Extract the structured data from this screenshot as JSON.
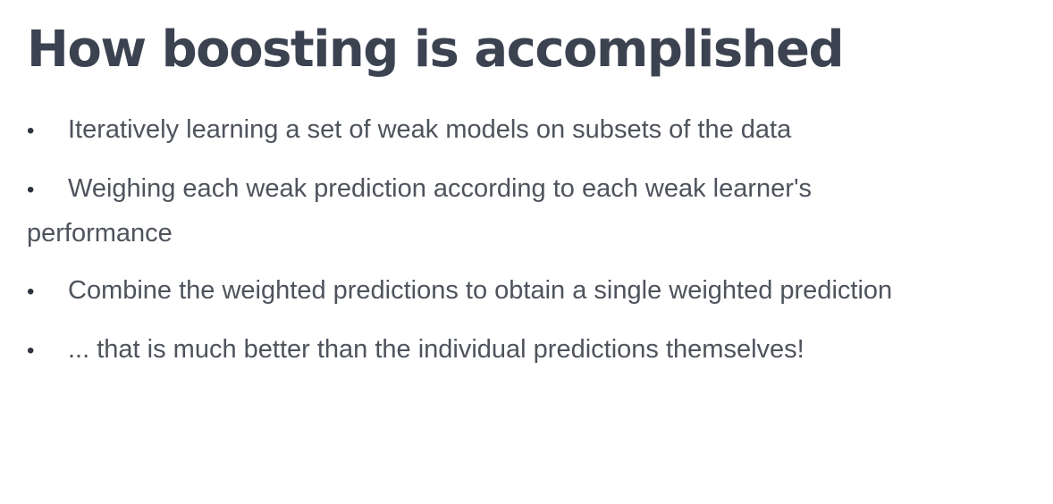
{
  "slide": {
    "title": "How boosting is accomplished",
    "bullets": [
      {
        "text": "Iteratively learning a set of weak models on subsets of the data"
      },
      {
        "text": "Weighing each weak prediction according to each weak learner's performance"
      },
      {
        "text": "Combine the weighted predictions to obtain a single weighted prediction"
      },
      {
        "text": "... that is much better than the individual predictions themselves!"
      }
    ],
    "bullet_symbol": "•",
    "colors": {
      "background": "#ffffff",
      "title": "#3b4250",
      "text": "#4e535c"
    }
  }
}
